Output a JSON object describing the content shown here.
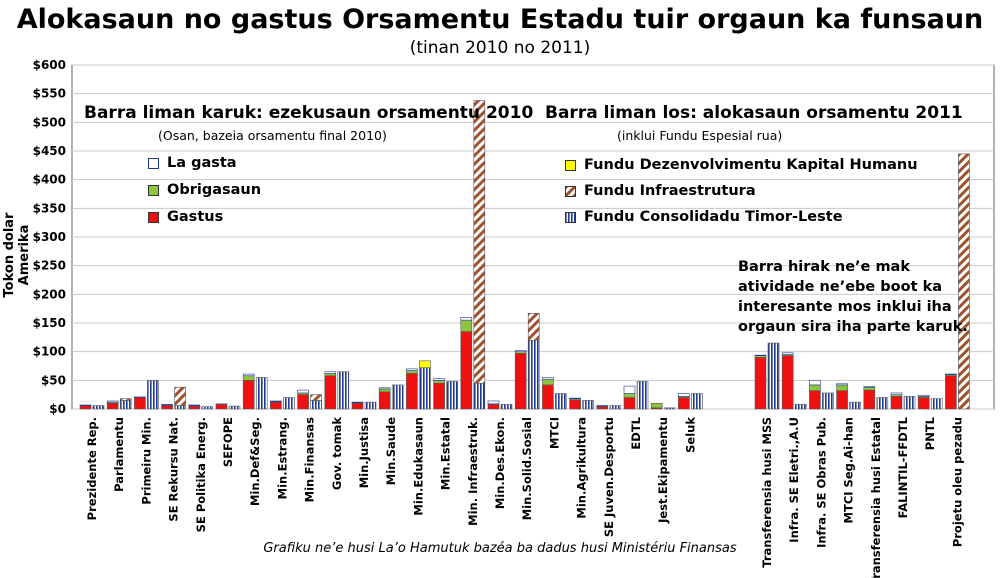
{
  "chart_data": {
    "type": "bar",
    "title": "Alokasaun no gastus Orsamentu Estadu tuir orgaun ka funsaun",
    "subtitle": "(tinan 2010 no 2011)",
    "ylabel": "Tokon dolar Amerika",
    "ylim": [
      0,
      600
    ],
    "yticks": [
      "$0",
      "$50",
      "$100",
      "$150",
      "$200",
      "$250",
      "$300",
      "$350",
      "$400",
      "$450",
      "$500",
      "$550",
      "$600"
    ],
    "annotations": {
      "left_title": "Barra liman karuk: ezekusaun orsamentu 2010",
      "left_sub": "(Osan, bazeia orsamentu final 2010)",
      "right_title": "Barra liman los: alokasaun orsamentu 2011",
      "right_sub": "(inklui Fundu Espesial rua)",
      "note": "Barra hirak ne’e mak atividade ne’ebe boot ka interesante mos inklui iha orgaun sira iha parte karuk."
    },
    "legend_2010": [
      {
        "name": "La gasta",
        "color": "#ffffff"
      },
      {
        "name": "Obrigasaun",
        "color": "#8cc63f"
      },
      {
        "name": "Gastus",
        "color": "#ee1111"
      }
    ],
    "legend_2011": [
      {
        "name": "Fundu Dezenvolvimentu Kapital Humanu",
        "color": "#ffff00"
      },
      {
        "name": "Fundu Infraestrutura",
        "color": "#a0522d"
      },
      {
        "name": "Fundu Consolidadu Timor-Leste",
        "color": "#1f3a93"
      }
    ],
    "categories": [
      "Prezidente Rep.",
      "Parlamentu",
      "Primeiru Min.",
      "SE Rekursu Nat.",
      "SE Politika Energ.",
      "SEFOPE",
      "Min.Def&Seg.",
      "Min.Estrang.",
      "Min.Finansas",
      "Gov. tomak",
      "Min.Justisa",
      "Min.Saude",
      "Min.Edukasaun",
      "Min.Estatal",
      "Min. Infraestruk.",
      "Min.Des.Ekon.",
      "Min.Solid.Sosial",
      "MTCI",
      "Min.Agrikultura",
      "SE Juven.Desportu",
      "EDTL",
      "Jest.Ekipamentu",
      "Seluk",
      "Transferensia husi MSS",
      "Infra. SE Eletri.,A.U",
      "Infra. SE Obras Pub.",
      "MTCI Seg.Ai-han",
      "Transferensia husi Estatal",
      "FALINTIL-FFDTL",
      "PNTL",
      "Projetu oleu pezadu"
    ],
    "series_2010": [
      {
        "name": "Gastus",
        "values": [
          6,
          10,
          20,
          6,
          5,
          8,
          50,
          12,
          25,
          58,
          10,
          30,
          62,
          45,
          135,
          8,
          97,
          42,
          16,
          4,
          20,
          2,
          20,
          90,
          93,
          32,
          32,
          33,
          22,
          20,
          58
        ]
      },
      {
        "name": "Obrigasaun",
        "values": [
          0,
          2,
          0,
          1,
          1,
          1,
          8,
          1,
          3,
          4,
          1,
          5,
          5,
          5,
          20,
          1,
          3,
          10,
          2,
          1,
          7,
          8,
          2,
          3,
          2,
          10,
          10,
          5,
          3,
          2,
          2
        ]
      },
      {
        "name": "La gasta",
        "values": [
          1,
          2,
          1,
          1,
          1,
          0,
          3,
          1,
          5,
          3,
          1,
          2,
          3,
          3,
          5,
          5,
          2,
          3,
          1,
          1,
          13,
          0,
          5,
          1,
          3,
          8,
          2,
          1,
          3,
          2,
          1
        ]
      }
    ],
    "series_2011": [
      {
        "name": "Fundu Consolidadu Timor-Leste",
        "values": [
          6,
          15,
          50,
          6,
          4,
          5,
          55,
          20,
          15,
          65,
          12,
          42,
          72,
          48,
          45,
          8,
          120,
          27,
          15,
          6,
          48,
          2,
          27,
          115,
          8,
          28,
          12,
          20,
          22,
          18,
          0
        ]
      },
      {
        "name": "Fundu Infraestrutura",
        "values": [
          0,
          3,
          0,
          32,
          0,
          0,
          0,
          0,
          10,
          0,
          0,
          0,
          0,
          0,
          493,
          0,
          47,
          0,
          0,
          0,
          0,
          0,
          0,
          0,
          0,
          0,
          0,
          0,
          0,
          0,
          445
        ]
      },
      {
        "name": "Fundu Dezenvolvimentu Kapital Humanu",
        "values": [
          0,
          0,
          0,
          0,
          0,
          0,
          0,
          0,
          0,
          0,
          0,
          0,
          12,
          0,
          0,
          0,
          0,
          0,
          0,
          0,
          0,
          0,
          0,
          0,
          0,
          0,
          0,
          0,
          0,
          0,
          0
        ]
      }
    ],
    "credit": "Grafiku ne’e husi La’o Hamutuk bazéa ba dadus husi Ministériu Finansas",
    "colors": {
      "gastus": "#ee1111",
      "obrigasaun": "#8cc63f",
      "la_gasta": "#ffffff",
      "kapital_humanu": "#ffff00",
      "infraestrutura": "#a0522d",
      "consolidadu": "#1f3a93"
    }
  }
}
